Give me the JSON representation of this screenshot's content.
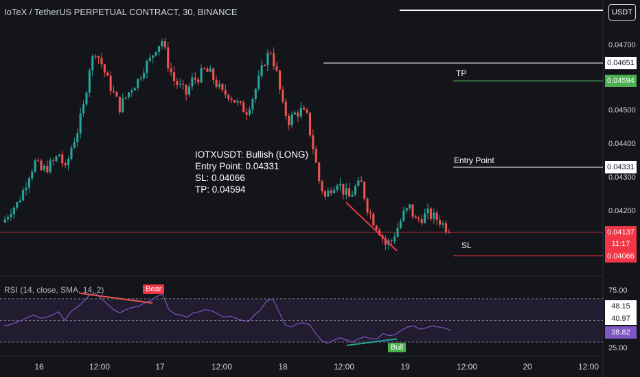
{
  "title": "IoTeX / TetherUS PERPETUAL CONTRACT, 30, BINANCE",
  "currency_button": "USDT",
  "analysis": {
    "line1": "IOTXUSDT: Bullish (LONG)",
    "line2": "Entry Point: 0.04331",
    "line3": "SL: 0.04066",
    "line4": "TP: 0.04594"
  },
  "levels": {
    "tp_label": "TP",
    "entry_label": "Entry Point",
    "sl_label": "SL"
  },
  "price_tags": {
    "high": "0.04651",
    "tp": "0.04594",
    "entry": "0.04331",
    "current": "0.04137",
    "countdown": "11:17",
    "sl": "0.04066"
  },
  "rsi": {
    "label": "RSI (14, close, SMA, 14, 2)",
    "bear_label": "Bear",
    "bull_label": "Bull",
    "ticks": [
      "75.00",
      "25.00"
    ],
    "value_tags": [
      "48.15",
      "40.97",
      "38.82"
    ]
  },
  "colors": {
    "background": "#14151b",
    "bull_candle": "#26a69a",
    "bear_candle": "#ef5350",
    "tp_line": "#4caf50",
    "sl_line": "#f23645",
    "rsi_line": "#7e57c2",
    "rsi_band": "#2a2240"
  },
  "chart_data": {
    "type": "candlestick",
    "y_axis_ticks": [
      "0.04700",
      "0.04500",
      "0.04400",
      "0.04300",
      "0.04200"
    ],
    "x_axis_ticks": [
      "16",
      "12:00",
      "17",
      "12:00",
      "18",
      "12:00",
      "19",
      "12:00",
      "20",
      "12:00"
    ],
    "ylim": [
      0.0402,
      0.048
    ],
    "close_path": [
      0.04185,
      0.04215,
      0.0423,
      0.0427,
      0.0432,
      0.04355,
      0.0433,
      0.0434,
      0.04355,
      0.0438,
      0.0433,
      0.044,
      0.0445,
      0.0452,
      0.0464,
      0.0469,
      0.0465,
      0.046,
      0.0456,
      0.0452,
      0.0455,
      0.0458,
      0.046,
      0.0464,
      0.0466,
      0.047,
      0.0472,
      0.0465,
      0.046,
      0.0458,
      0.0456,
      0.046,
      0.0461,
      0.0463,
      0.0462,
      0.0459,
      0.0456,
      0.0456,
      0.0454,
      0.0452,
      0.0451,
      0.0455,
      0.046,
      0.0466,
      0.0469,
      0.0462,
      0.0452,
      0.0448,
      0.045,
      0.0451,
      0.0449,
      0.044,
      0.043,
      0.0425,
      0.0428,
      0.043,
      0.0427,
      0.0425,
      0.0428,
      0.0429,
      0.0422,
      0.0418,
      0.0415,
      0.0411,
      0.0412,
      0.0416,
      0.042,
      0.0422,
      0.0418,
      0.0419,
      0.042,
      0.0419,
      0.0418,
      0.0416
    ],
    "rsi_path": [
      45,
      46,
      48,
      50,
      53,
      55,
      52,
      53,
      55,
      58,
      50,
      58,
      62,
      67,
      73,
      75,
      70,
      65,
      60,
      57,
      60,
      62,
      63,
      66,
      68,
      72,
      74,
      60,
      56,
      55,
      53,
      57,
      58,
      60,
      59,
      56,
      53,
      54,
      52,
      50,
      49,
      55,
      60,
      68,
      70,
      58,
      46,
      44,
      47,
      48,
      46,
      38,
      31,
      29,
      32,
      34,
      32,
      30,
      33,
      35,
      33,
      33,
      38,
      36,
      37,
      41,
      44,
      45,
      42,
      43,
      45,
      44,
      43,
      41
    ]
  }
}
